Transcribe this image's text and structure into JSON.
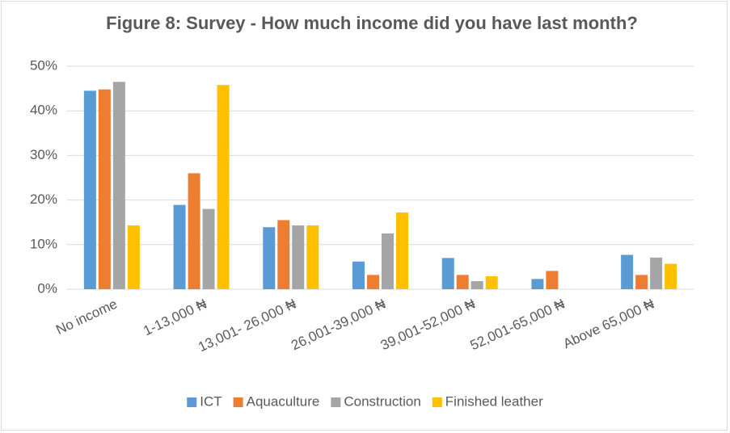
{
  "chart_data": {
    "type": "bar",
    "title": "Figure 8: Survey - How much income did you have last month?",
    "categories": [
      "No income",
      "1-13,000 ₦",
      "13,001- 26,000 ₦",
      "26,001-39,000 ₦",
      "39,001-52,000 ₦",
      "52,001-65,000 ₦",
      "Above 65,000 ₦"
    ],
    "series": [
      {
        "name": "ICT",
        "color": "#5b9bd5",
        "values": [
          44.5,
          18.9,
          13.9,
          6.2,
          7,
          2.3,
          7.7
        ]
      },
      {
        "name": "Aquaculture",
        "color": "#ed7d31",
        "values": [
          44.8,
          26,
          15.5,
          3.2,
          3.2,
          4.1,
          3.2
        ]
      },
      {
        "name": "Construction",
        "color": "#a5a5a5",
        "values": [
          46.5,
          18,
          14.3,
          12.5,
          1.8,
          0,
          7.1
        ]
      },
      {
        "name": "Finished leather",
        "color": "#ffc000",
        "values": [
          14.3,
          45.8,
          14.3,
          17.2,
          2.9,
          0,
          5.7
        ]
      }
    ],
    "ylim": [
      0,
      50
    ],
    "yticks": [
      {
        "value": 0,
        "label": "0%"
      },
      {
        "value": 10,
        "label": "10%"
      },
      {
        "value": 20,
        "label": "20%"
      },
      {
        "value": 30,
        "label": "30%"
      },
      {
        "value": 40,
        "label": "40%"
      },
      {
        "value": 50,
        "label": "50%"
      }
    ],
    "grid": true,
    "legend": "bottom"
  }
}
